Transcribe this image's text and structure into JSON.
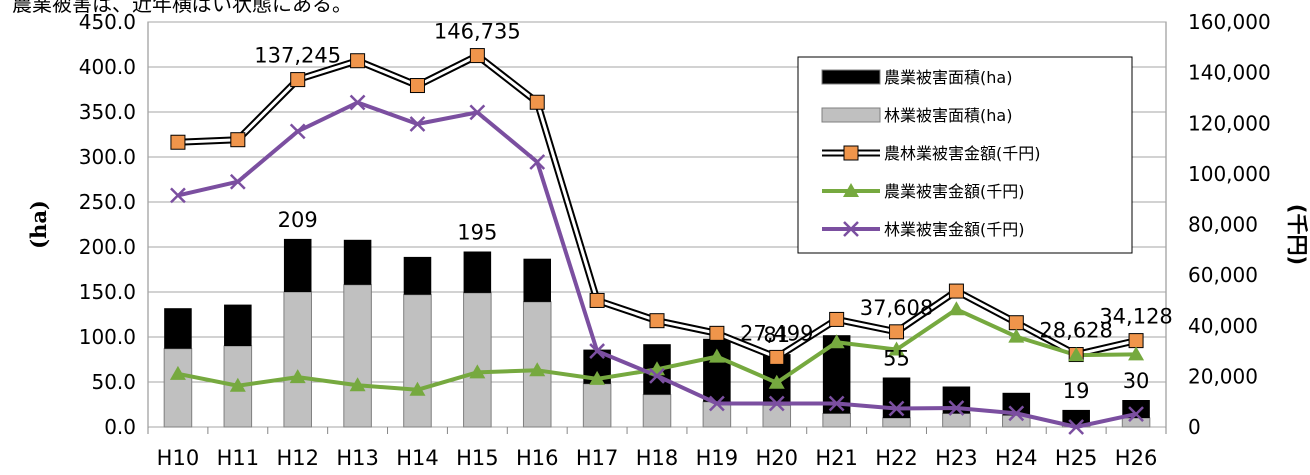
{
  "caption": "農業被害は、近年横ばい状態にある。",
  "chart_data": {
    "type": "bar",
    "categories": [
      "H10",
      "H11",
      "H12",
      "H13",
      "H14",
      "H15",
      "H16",
      "H17",
      "H18",
      "H19",
      "H20",
      "H21",
      "H22",
      "H23",
      "H24",
      "H25",
      "H26"
    ],
    "ylabel": "(ha)",
    "y2label": "(千円)",
    "ylim": [
      0,
      450
    ],
    "y2lim": [
      0,
      160000
    ],
    "yticks": [
      "0.0",
      "50.0",
      "100.0",
      "150.0",
      "200.0",
      "250.0",
      "300.0",
      "350.0",
      "400.0",
      "450.0"
    ],
    "y2ticks": [
      "0",
      "20,000",
      "40,000",
      "60,000",
      "80,000",
      "100,000",
      "120,000",
      "140,000",
      "160,000"
    ],
    "grid": true,
    "legend_position": "top-right",
    "bar_series": [
      {
        "name": "農業被害面積(ha)",
        "color": "#000000",
        "values": [
          45,
          46,
          59,
          50,
          42,
          46,
          48,
          38,
          56,
          70,
          57,
          87,
          45,
          30,
          25,
          17,
          20
        ]
      },
      {
        "name": "林業被害面積(ha)",
        "color": "#c0c0c0",
        "values": [
          87,
          90,
          150,
          158,
          147,
          149,
          139,
          48,
          36,
          28,
          24,
          15,
          10,
          15,
          13,
          2,
          10
        ]
      }
    ],
    "line_series": [
      {
        "name": "農林業被害金額(千円)",
        "style": "double",
        "color": "#000000",
        "marker": "square",
        "marker_color": "#f0954b",
        "values": [
          112500,
          113500,
          137245,
          144700,
          134900,
          146735,
          128300,
          50000,
          42000,
          37000,
          27499,
          42500,
          37608,
          53700,
          41200,
          28628,
          34128
        ]
      },
      {
        "name": "農業被害金額(千円)",
        "color": "#76a93f",
        "marker": "triangle",
        "values": [
          21000,
          16300,
          19700,
          16500,
          14700,
          21600,
          22400,
          19000,
          22800,
          27800,
          17500,
          33500,
          30600,
          46500,
          35700,
          28400,
          28700
        ]
      },
      {
        "name": "林業被害金額(千円)",
        "color": "#7b4fa0",
        "marker": "x",
        "values": [
          91500,
          96900,
          116800,
          128200,
          119700,
          124300,
          104700,
          30000,
          20200,
          9300,
          9300,
          9300,
          7300,
          7500,
          5400,
          0,
          5100
        ]
      }
    ],
    "bar_total_labels": [
      {
        "index": 2,
        "text": "209"
      },
      {
        "index": 5,
        "text": "195"
      },
      {
        "index": 10,
        "text": "81"
      },
      {
        "index": 12,
        "text": "55"
      },
      {
        "index": 15,
        "text": "19"
      },
      {
        "index": 16,
        "text": "30"
      }
    ],
    "line_value_labels": [
      {
        "index": 2,
        "text": "137,245"
      },
      {
        "index": 5,
        "text": "146,735"
      },
      {
        "index": 10,
        "text": "27,499"
      },
      {
        "index": 12,
        "text": "37,608"
      },
      {
        "index": 15,
        "text": "28,628"
      },
      {
        "index": 16,
        "text": "34,128"
      }
    ]
  }
}
